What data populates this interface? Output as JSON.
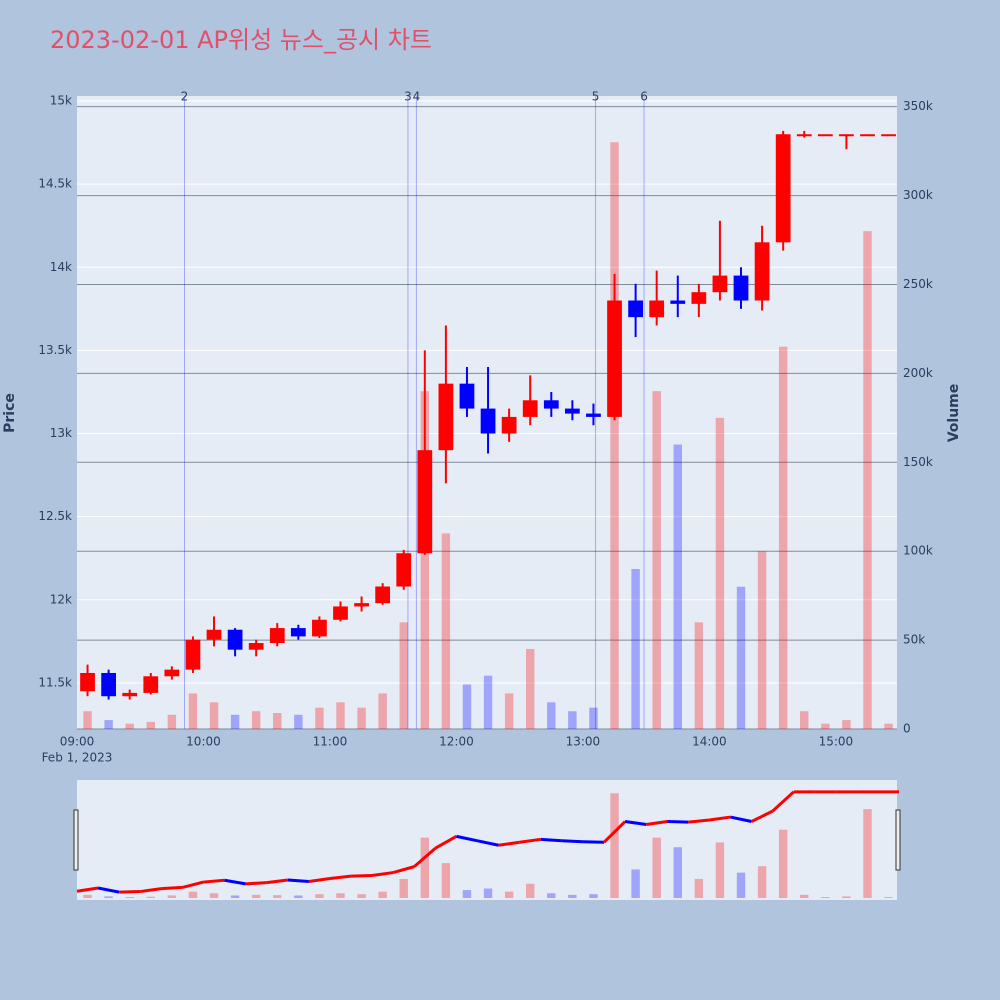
{
  "chart_data": {
    "type": "candlestick",
    "title": "2023-02-01 AP위성 뉴스_공시 차트",
    "y_label": "Price",
    "y2_label": "Volume",
    "x_date_label": "Feb 1, 2023",
    "xlim": [
      "09:00",
      "15:29"
    ],
    "xticks": [
      "09:00",
      "10:00",
      "11:00",
      "12:00",
      "13:00",
      "14:00",
      "15:00"
    ],
    "ylim": [
      11223,
      15030
    ],
    "yticks": [
      {
        "value": 11500,
        "label": "11.5k"
      },
      {
        "value": 12000,
        "label": "12k"
      },
      {
        "value": 12500,
        "label": "12.5k"
      },
      {
        "value": 13000,
        "label": "13k"
      },
      {
        "value": 13500,
        "label": "13.5k"
      },
      {
        "value": 14000,
        "label": "14k"
      },
      {
        "value": 14500,
        "label": "14.5k"
      },
      {
        "value": 15000,
        "label": "15k"
      }
    ],
    "y2lim": [
      0,
      356000
    ],
    "y2ticks": [
      0,
      {
        "value": 50000,
        "label": "50k"
      },
      {
        "value": 100000,
        "label": "100k"
      },
      {
        "value": 150000,
        "label": "150k"
      },
      {
        "value": 200000,
        "label": "200k"
      },
      {
        "value": 250000,
        "label": "250k"
      },
      {
        "value": 300000,
        "label": "300k"
      },
      {
        "value": 350000,
        "label": "350k"
      }
    ],
    "up_color": "#ff0000",
    "down_color": "#0000ff",
    "news": [
      {
        "label": "2",
        "x": "09:51"
      },
      {
        "label": "3",
        "x": "11:37"
      },
      {
        "label": "4",
        "x": "11:41"
      },
      {
        "label": "5",
        "x": "13:06"
      },
      {
        "label": "6",
        "x": "13:29"
      }
    ],
    "x": [
      "09:00",
      "09:10",
      "09:20",
      "09:30",
      "09:40",
      "09:50",
      "10:00",
      "10:10",
      "10:20",
      "10:30",
      "10:40",
      "10:50",
      "11:00",
      "11:10",
      "11:20",
      "11:30",
      "11:40",
      "11:50",
      "12:00",
      "12:10",
      "12:20",
      "12:30",
      "12:40",
      "12:50",
      "13:00",
      "13:10",
      "13:20",
      "13:30",
      "13:40",
      "13:50",
      "14:00",
      "14:10",
      "14:20",
      "14:30",
      "14:40",
      "14:50",
      "15:00",
      "15:10",
      "15:20"
    ],
    "open": [
      11450,
      11560,
      11420,
      11440,
      11540,
      11580,
      11760,
      11820,
      11700,
      11740,
      11830,
      11780,
      11880,
      11960,
      11980,
      12080,
      12280,
      12900,
      13300,
      13150,
      13000,
      13100,
      13200,
      13150,
      13120,
      13100,
      13800,
      13700,
      13800,
      13780,
      13850,
      13950,
      13800,
      14150,
      14800,
      14800,
      14800,
      14800,
      14800
    ],
    "high": [
      11610,
      11580,
      11460,
      11560,
      11600,
      11780,
      11900,
      11830,
      11760,
      11860,
      11850,
      11900,
      11990,
      12020,
      12100,
      12300,
      13500,
      13650,
      13400,
      13400,
      13150,
      13350,
      13250,
      13200,
      13180,
      13960,
      13900,
      13980,
      13950,
      13900,
      14280,
      14000,
      14250,
      14820,
      14820,
      14800,
      14800,
      14800,
      14800
    ],
    "low": [
      11420,
      11400,
      11400,
      11430,
      11520,
      11560,
      11720,
      11660,
      11660,
      11720,
      11760,
      11770,
      11870,
      11930,
      11970,
      12060,
      12270,
      12700,
      13100,
      12880,
      12950,
      13050,
      13100,
      13080,
      13050,
      13080,
      13580,
      13650,
      13700,
      13700,
      13800,
      13750,
      13740,
      14100,
      14780,
      14800,
      14710,
      14800,
      14800
    ],
    "close": [
      11560,
      11420,
      11440,
      11540,
      11580,
      11760,
      11820,
      11700,
      11740,
      11830,
      11780,
      11880,
      11960,
      11980,
      12080,
      12280,
      12900,
      13300,
      13150,
      13000,
      13100,
      13200,
      13150,
      13120,
      13100,
      13800,
      13700,
      13800,
      13780,
      13850,
      13950,
      13800,
      14150,
      14800,
      14800,
      14800,
      14800,
      14800,
      14800
    ],
    "volume": [
      10000,
      5000,
      3000,
      4000,
      8000,
      20000,
      15000,
      8000,
      10000,
      9000,
      8000,
      12000,
      15000,
      12000,
      20000,
      60000,
      190000,
      110000,
      25000,
      30000,
      20000,
      45000,
      15000,
      10000,
      12000,
      330000,
      90000,
      190000,
      160000,
      60000,
      175000,
      80000,
      100000,
      215000,
      10000,
      3000,
      5000,
      280000,
      3000
    ]
  }
}
